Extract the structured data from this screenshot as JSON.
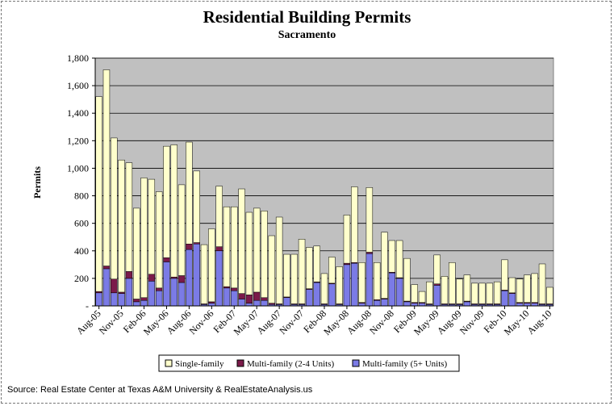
{
  "chart_data": {
    "type": "bar",
    "stacked": true,
    "title": "Residential Building Permits",
    "subtitle": "Sacramento",
    "xlabel": "",
    "ylabel": "Permits",
    "ylim": [
      0,
      1800
    ],
    "yticks": [
      0,
      200,
      400,
      600,
      800,
      1000,
      1200,
      1400,
      1600,
      1800
    ],
    "ytick_labels": [
      "-",
      "200",
      "400",
      "600",
      "800",
      "1,000",
      "1,200",
      "1,400",
      "1,600",
      "1,800"
    ],
    "grid": true,
    "legend_position": "bottom",
    "x_tick_labels": [
      "Aug-05",
      "Nov-05",
      "Feb-06",
      "May-06",
      "Aug-06",
      "Nov-06",
      "Feb-07",
      "May-07",
      "Aug-07",
      "Nov-07",
      "Feb-08",
      "May-08",
      "Aug-08",
      "Nov-08",
      "Feb-09",
      "May-09",
      "Aug-09",
      "Nov-09",
      "Feb-10",
      "May-10",
      "Aug-10"
    ],
    "categories": [
      "Aug-05",
      "Sep-05",
      "Oct-05",
      "Nov-05",
      "Dec-05",
      "Jan-06",
      "Feb-06",
      "Mar-06",
      "Apr-06",
      "May-06",
      "Jun-06",
      "Jul-06",
      "Aug-06",
      "Sep-06",
      "Oct-06",
      "Nov-06",
      "Dec-06",
      "Jan-07",
      "Feb-07",
      "Mar-07",
      "Apr-07",
      "May-07",
      "Jun-07",
      "Jul-07",
      "Aug-07",
      "Sep-07",
      "Oct-07",
      "Nov-07",
      "Dec-07",
      "Jan-08",
      "Feb-08",
      "Mar-08",
      "Apr-08",
      "May-08",
      "Jun-08",
      "Jul-08",
      "Aug-08",
      "Sep-08",
      "Oct-08",
      "Nov-08",
      "Dec-08",
      "Jan-09",
      "Feb-09",
      "Mar-09",
      "Apr-09",
      "May-09",
      "Jun-09",
      "Jul-09",
      "Aug-09",
      "Sep-09",
      "Oct-09",
      "Nov-09",
      "Dec-09",
      "Jan-10",
      "Feb-10",
      "Mar-10",
      "Apr-10",
      "May-10",
      "Jun-10",
      "Jul-10",
      "Aug-10"
    ],
    "series": [
      {
        "name": "Multi-family (5+ Units)",
        "color": "#7b7be6",
        "values": [
          95,
          270,
          95,
          90,
          200,
          30,
          40,
          180,
          110,
          320,
          200,
          170,
          410,
          450,
          10,
          20,
          400,
          130,
          110,
          50,
          20,
          40,
          40,
          10,
          10,
          60,
          10,
          10,
          120,
          170,
          10,
          160,
          10,
          300,
          310,
          20,
          380,
          40,
          50,
          240,
          200,
          30,
          20,
          20,
          10,
          150,
          10,
          10,
          10,
          30,
          10,
          10,
          10,
          10,
          110,
          90,
          20,
          20,
          20,
          10,
          10
        ]
      },
      {
        "name": "Multi-family (2-4 Units)",
        "color": "#7b1a4a",
        "values": [
          10,
          20,
          100,
          10,
          50,
          20,
          20,
          50,
          20,
          30,
          10,
          50,
          40,
          10,
          5,
          10,
          30,
          10,
          20,
          40,
          60,
          60,
          20,
          10,
          5,
          5,
          5,
          5,
          5,
          5,
          5,
          5,
          5,
          10,
          5,
          5,
          10,
          5,
          5,
          5,
          5,
          5,
          5,
          5,
          5,
          10,
          5,
          5,
          5,
          5,
          5,
          5,
          5,
          5,
          5,
          5,
          5,
          5,
          5,
          5,
          5
        ]
      },
      {
        "name": "Single-family",
        "color": "#ffffcc",
        "values": [
          1415,
          1425,
          1025,
          960,
          790,
          660,
          870,
          690,
          700,
          810,
          960,
          660,
          740,
          520,
          430,
          530,
          440,
          580,
          590,
          760,
          600,
          610,
          630,
          490,
          630,
          310,
          360,
          470,
          300,
          260,
          220,
          190,
          270,
          350,
          550,
          290,
          470,
          270,
          480,
          230,
          270,
          310,
          130,
          80,
          160,
          210,
          200,
          300,
          180,
          190,
          150,
          150,
          150,
          160,
          220,
          110,
          170,
          200,
          210,
          290,
          120
        ]
      }
    ]
  },
  "legend": {
    "items": [
      {
        "label": "Single-family",
        "color": "#ffffcc"
      },
      {
        "label": "Multi-family (2-4 Units)",
        "color": "#7b1a4a"
      },
      {
        "label": "Multi-family (5+ Units)",
        "color": "#7b7be6"
      }
    ]
  },
  "source": "Source: Real Estate Center at Texas A&M University & RealEstateAnalysis.us",
  "colors": {
    "plot_bg": "#c0c0c0",
    "grid": "#000000"
  }
}
